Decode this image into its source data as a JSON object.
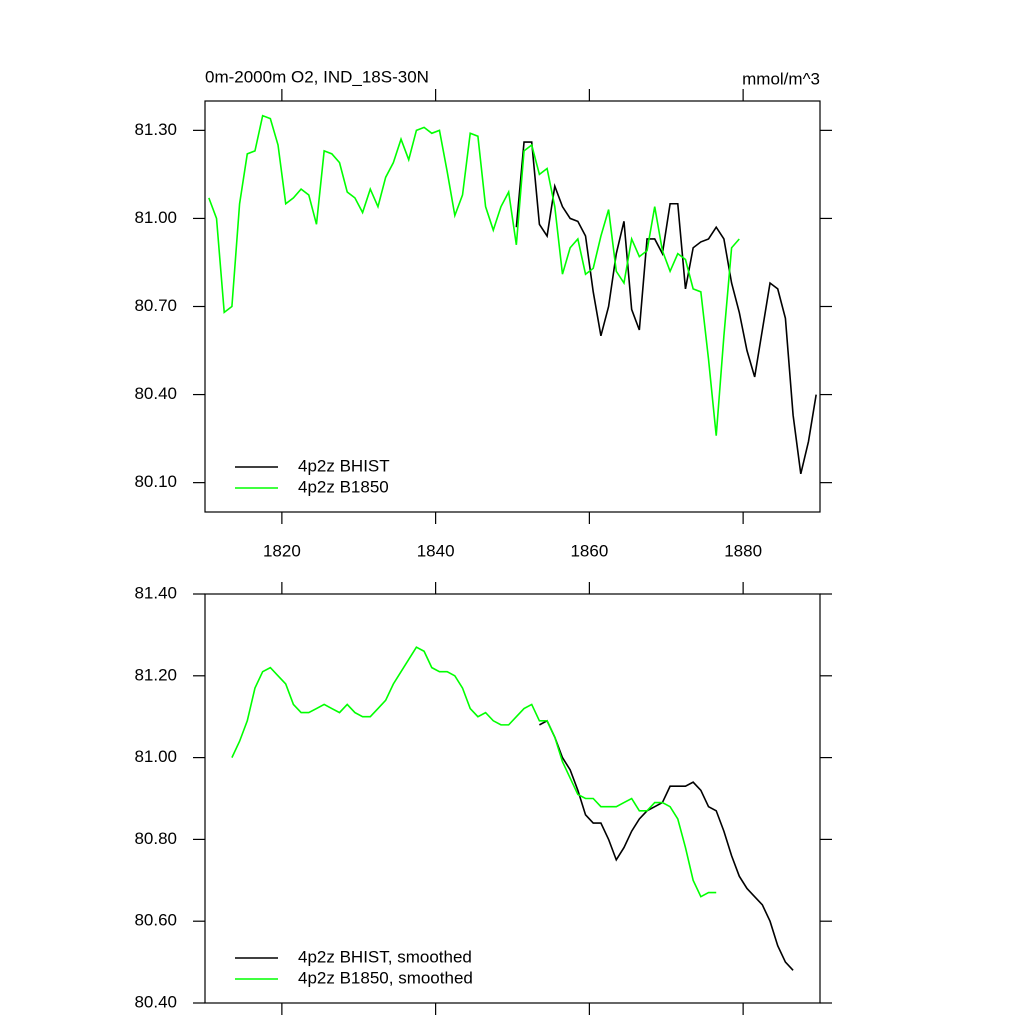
{
  "chart_data": [
    {
      "type": "line",
      "title": "0m-2000m O2, IND_18S-30N",
      "units": "mmol/m^3",
      "xlim": [
        1810,
        1890
      ],
      "xticks": [
        1820,
        1840,
        1860,
        1880
      ],
      "xticklabels": true,
      "ylim": [
        80.0,
        81.4
      ],
      "yticks": [
        {
          "value": 80.1,
          "label": "80.10"
        },
        {
          "value": 80.4,
          "label": "80.40"
        },
        {
          "value": 80.7,
          "label": "80.70"
        },
        {
          "value": 81.0,
          "label": "81.00"
        },
        {
          "value": 81.3,
          "label": "81.30"
        }
      ],
      "legend": "lower left",
      "series": [
        {
          "name": "4p2z BHIST",
          "color": "#000000",
          "x": [
            1850.5,
            1851.5,
            1852.5,
            1853.5,
            1854.5,
            1855.5,
            1856.5,
            1857.5,
            1858.5,
            1859.5,
            1860.5,
            1861.5,
            1862.5,
            1863.5,
            1864.5,
            1865.5,
            1866.5,
            1867.5,
            1868.5,
            1869.5,
            1870.5,
            1871.5,
            1872.5,
            1873.5,
            1874.5,
            1875.5,
            1876.5,
            1877.5,
            1878.5,
            1879.5,
            1880.5,
            1881.5,
            1882.5,
            1883.5,
            1884.5,
            1885.5,
            1886.5,
            1887.5,
            1888.5,
            1889.5
          ],
          "values": [
            80.97,
            81.26,
            81.26,
            80.98,
            80.94,
            81.11,
            81.04,
            81.0,
            80.99,
            80.94,
            80.75,
            80.6,
            80.7,
            80.88,
            80.99,
            80.69,
            80.62,
            80.93,
            80.93,
            80.88,
            81.05,
            81.05,
            80.76,
            80.9,
            80.92,
            80.93,
            80.97,
            80.93,
            80.78,
            80.68,
            80.55,
            80.46,
            80.62,
            80.78,
            80.76,
            80.66,
            80.33,
            80.13,
            80.24,
            80.4
          ]
        },
        {
          "name": "4p2z B1850",
          "color": "#00ff00",
          "x": [
            1810.5,
            1811.5,
            1812.5,
            1813.5,
            1814.5,
            1815.5,
            1816.5,
            1817.5,
            1818.5,
            1819.5,
            1820.5,
            1821.5,
            1822.5,
            1823.5,
            1824.5,
            1825.5,
            1826.5,
            1827.5,
            1828.5,
            1829.5,
            1830.5,
            1831.5,
            1832.5,
            1833.5,
            1834.5,
            1835.5,
            1836.5,
            1837.5,
            1838.5,
            1839.5,
            1840.5,
            1841.5,
            1842.5,
            1843.5,
            1844.5,
            1845.5,
            1846.5,
            1847.5,
            1848.5,
            1849.5,
            1850.5,
            1851.5,
            1852.5,
            1853.5,
            1854.5,
            1855.5,
            1856.5,
            1857.5,
            1858.5,
            1859.5,
            1860.5,
            1861.5,
            1862.5,
            1863.5,
            1864.5,
            1865.5,
            1866.5,
            1867.5,
            1868.5,
            1869.5,
            1870.5,
            1871.5,
            1872.5,
            1873.5,
            1874.5,
            1875.5,
            1876.5,
            1877.5,
            1878.5,
            1879.5
          ],
          "values": [
            81.07,
            81.0,
            80.68,
            80.7,
            81.05,
            81.22,
            81.23,
            81.35,
            81.34,
            81.25,
            81.05,
            81.07,
            81.1,
            81.08,
            80.98,
            81.23,
            81.22,
            81.19,
            81.09,
            81.07,
            81.02,
            81.1,
            81.04,
            81.14,
            81.19,
            81.27,
            81.2,
            81.3,
            81.31,
            81.29,
            81.3,
            81.16,
            81.01,
            81.08,
            81.29,
            81.28,
            81.04,
            80.96,
            81.04,
            81.09,
            80.91,
            81.23,
            81.25,
            81.15,
            81.17,
            81.04,
            80.81,
            80.9,
            80.93,
            80.81,
            80.83,
            80.94,
            81.03,
            80.82,
            80.78,
            80.93,
            80.87,
            80.89,
            81.04,
            80.89,
            80.82,
            80.88,
            80.86,
            80.76,
            80.75,
            80.52,
            80.26,
            80.6,
            80.9,
            80.93
          ]
        }
      ]
    },
    {
      "type": "line",
      "xlim": [
        1810,
        1890
      ],
      "xticks": [
        1820,
        1840,
        1860,
        1880
      ],
      "xticklabels": false,
      "ylim": [
        80.4,
        81.4
      ],
      "yticks": [
        {
          "value": 80.4,
          "label": "80.40"
        },
        {
          "value": 80.6,
          "label": "80.60"
        },
        {
          "value": 80.8,
          "label": "80.80"
        },
        {
          "value": 81.0,
          "label": "81.00"
        },
        {
          "value": 81.2,
          "label": "81.20"
        },
        {
          "value": 81.4,
          "label": "81.40"
        }
      ],
      "legend": "lower left",
      "series": [
        {
          "name": "4p2z BHIST, smoothed",
          "color": "#000000",
          "x": [
            1853.5,
            1854.5,
            1855.5,
            1856.5,
            1857.5,
            1858.5,
            1859.5,
            1860.5,
            1861.5,
            1862.5,
            1863.5,
            1864.5,
            1865.5,
            1866.5,
            1867.5,
            1868.5,
            1869.5,
            1870.5,
            1871.5,
            1872.5,
            1873.5,
            1874.5,
            1875.5,
            1876.5,
            1877.5,
            1878.5,
            1879.5,
            1880.5,
            1881.5,
            1882.5,
            1883.5,
            1884.5,
            1885.5,
            1886.5
          ],
          "values": [
            81.08,
            81.09,
            81.05,
            81.0,
            80.97,
            80.92,
            80.86,
            80.84,
            80.84,
            80.8,
            80.75,
            80.78,
            80.82,
            80.85,
            80.87,
            80.88,
            80.89,
            80.93,
            80.93,
            80.93,
            80.94,
            80.92,
            80.88,
            80.87,
            80.82,
            80.76,
            80.71,
            80.68,
            80.66,
            80.64,
            80.6,
            80.54,
            80.5,
            80.48
          ]
        },
        {
          "name": "4p2z B1850, smoothed",
          "color": "#00ff00",
          "x": [
            1813.5,
            1814.5,
            1815.5,
            1816.5,
            1817.5,
            1818.5,
            1819.5,
            1820.5,
            1821.5,
            1822.5,
            1823.5,
            1824.5,
            1825.5,
            1826.5,
            1827.5,
            1828.5,
            1829.5,
            1830.5,
            1831.5,
            1832.5,
            1833.5,
            1834.5,
            1835.5,
            1836.5,
            1837.5,
            1838.5,
            1839.5,
            1840.5,
            1841.5,
            1842.5,
            1843.5,
            1844.5,
            1845.5,
            1846.5,
            1847.5,
            1848.5,
            1849.5,
            1850.5,
            1851.5,
            1852.5,
            1853.5,
            1854.5,
            1855.5,
            1856.5,
            1857.5,
            1858.5,
            1859.5,
            1860.5,
            1861.5,
            1862.5,
            1863.5,
            1864.5,
            1865.5,
            1866.5,
            1867.5,
            1868.5,
            1869.5,
            1870.5,
            1871.5,
            1872.5,
            1873.5,
            1874.5,
            1875.5,
            1876.5
          ],
          "values": [
            81.0,
            81.04,
            81.09,
            81.17,
            81.21,
            81.22,
            81.2,
            81.18,
            81.13,
            81.11,
            81.11,
            81.12,
            81.13,
            81.12,
            81.11,
            81.13,
            81.11,
            81.1,
            81.1,
            81.12,
            81.14,
            81.18,
            81.21,
            81.24,
            81.27,
            81.26,
            81.22,
            81.21,
            81.21,
            81.2,
            81.17,
            81.12,
            81.1,
            81.11,
            81.09,
            81.08,
            81.08,
            81.1,
            81.12,
            81.13,
            81.09,
            81.09,
            81.05,
            80.99,
            80.95,
            80.91,
            80.9,
            80.9,
            80.88,
            80.88,
            80.88,
            80.89,
            80.9,
            80.87,
            80.87,
            80.89,
            80.89,
            80.88,
            80.85,
            80.78,
            80.7,
            80.66,
            80.67,
            80.67
          ]
        }
      ]
    }
  ]
}
